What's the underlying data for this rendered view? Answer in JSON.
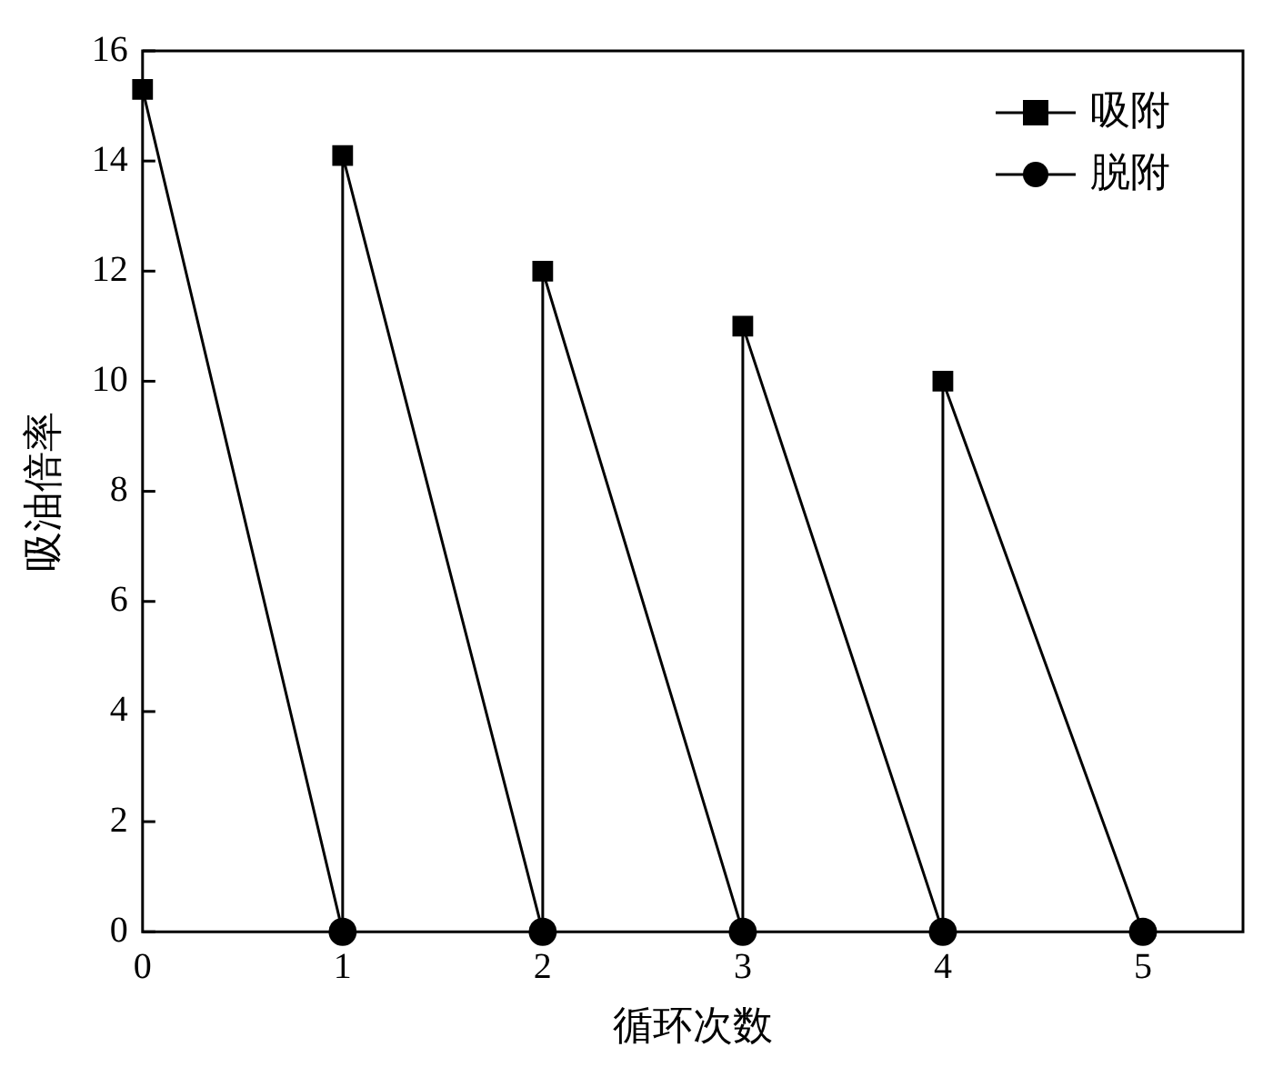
{
  "chart_data": {
    "type": "scatter",
    "xlabel": "循环次数",
    "ylabel": "吸油倍率",
    "xlim": [
      0,
      5.5
    ],
    "xticks": [
      0,
      1,
      2,
      3,
      4,
      5
    ],
    "ylim": [
      0,
      16
    ],
    "yticks": [
      0,
      2,
      4,
      6,
      8,
      10,
      12,
      14,
      16
    ],
    "grid": false,
    "legend": "top right",
    "series": [
      {
        "type": "line",
        "color": "#000000",
        "marker": "none",
        "x": [
          0,
          1,
          1,
          2,
          2,
          3,
          3,
          4,
          4,
          5
        ],
        "values": [
          15.3,
          0,
          14.1,
          0,
          12,
          0,
          11,
          0,
          10,
          0
        ]
      },
      {
        "name": "吸附",
        "color": "#000000",
        "marker": "square",
        "x": [
          0,
          1,
          2,
          3,
          4
        ],
        "values": [
          15.3,
          14.1,
          12,
          11,
          10
        ]
      },
      {
        "name": "脱附",
        "color": "#000000",
        "marker": "circle",
        "x": [
          1,
          2,
          3,
          4,
          5
        ],
        "values": [
          0,
          0,
          0,
          0,
          0
        ]
      }
    ]
  }
}
